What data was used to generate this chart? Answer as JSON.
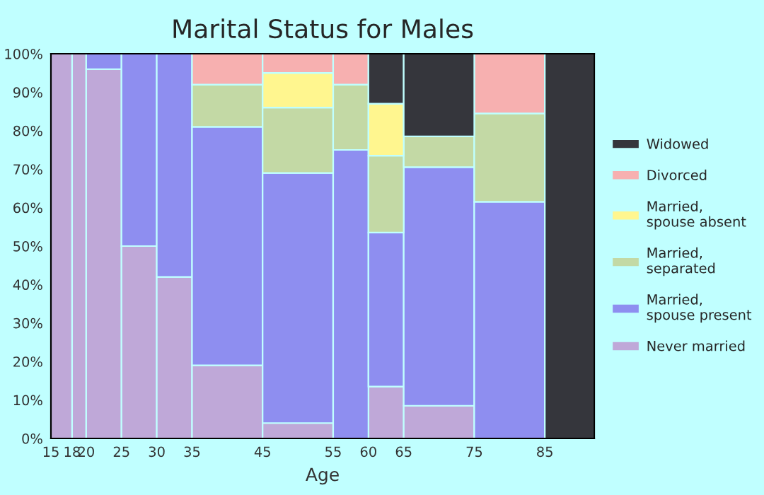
{
  "chart_data": {
    "type": "bar",
    "stacked": true,
    "title": "Marital Status for Males",
    "xlabel": "Age",
    "x": [
      16.5,
      19,
      22.5,
      27.5,
      32.5,
      40,
      50,
      57.5,
      62.5,
      70,
      80,
      88.5
    ],
    "xlim": [
      15,
      92
    ],
    "xticks": [
      15,
      18,
      20,
      25,
      30,
      35,
      45,
      55,
      60,
      65,
      75,
      85
    ],
    "ylim": [
      0,
      100
    ],
    "yticks": [
      {
        "value": 0,
        "label": "0%"
      },
      {
        "value": 10,
        "label": "10%"
      },
      {
        "value": 20,
        "label": "20%"
      },
      {
        "value": 30,
        "label": "30%"
      },
      {
        "value": 40,
        "label": "40%"
      },
      {
        "value": 50,
        "label": "50%"
      },
      {
        "value": 60,
        "label": "60%"
      },
      {
        "value": 70,
        "label": "70%"
      },
      {
        "value": 80,
        "label": "80%"
      },
      {
        "value": 90,
        "label": "90%"
      },
      {
        "value": 100,
        "label": "100%"
      }
    ],
    "legend": "right",
    "series": [
      {
        "name": "Never married",
        "color": "#bfa8d8",
        "values": [
          100,
          100,
          96,
          50,
          42,
          19,
          4,
          0,
          13.5,
          8.5,
          0,
          0
        ]
      },
      {
        "name": "Married,\nspouse present",
        "color": "#8e8ef0",
        "values": [
          0,
          0,
          4,
          50,
          58,
          62,
          65,
          75,
          40,
          62,
          61.5,
          0
        ]
      },
      {
        "name": "Married,\nseparated",
        "color": "#c3d9a5",
        "values": [
          0,
          0,
          0,
          0,
          0,
          11,
          17,
          17,
          20,
          8,
          23,
          0
        ]
      },
      {
        "name": "Married,\nspouse absent",
        "color": "#fff68f",
        "values": [
          0,
          0,
          0,
          0,
          0,
          0,
          9,
          0,
          13.5,
          0,
          0,
          0
        ]
      },
      {
        "name": "Divorced",
        "color": "#f7b0b0",
        "values": [
          0,
          0,
          0,
          0,
          0,
          8,
          5,
          8,
          0,
          0,
          15.5,
          0
        ]
      },
      {
        "name": "Widowed",
        "color": "#35363c",
        "values": [
          0,
          0,
          0,
          0,
          0,
          0,
          0,
          0,
          13,
          21.5,
          0,
          100
        ]
      }
    ]
  }
}
